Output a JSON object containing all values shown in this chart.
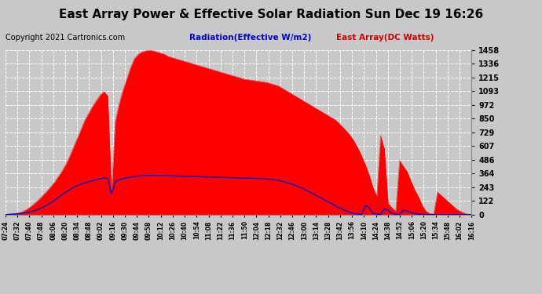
{
  "title": "East Array Power & Effective Solar Radiation Sun Dec 19 16:26",
  "copyright": "Copyright 2021 Cartronics.com",
  "legend_radiation": "Radiation(Effective W/m2)",
  "legend_array": "East Array(DC Watts)",
  "yticks": [
    0.0,
    121.5,
    242.9,
    364.4,
    485.9,
    607.3,
    728.8,
    850.3,
    971.7,
    1093.2,
    1214.7,
    1336.1,
    1457.6
  ],
  "ymax": 1457.6,
  "xtick_labels": [
    "07:24",
    "07:32",
    "07:40",
    "07:48",
    "08:06",
    "08:20",
    "08:34",
    "08:48",
    "09:02",
    "09:16",
    "09:30",
    "09:44",
    "09:58",
    "10:12",
    "10:26",
    "10:40",
    "10:54",
    "11:08",
    "11:22",
    "11:36",
    "11:50",
    "12:04",
    "12:18",
    "12:32",
    "12:46",
    "13:00",
    "13:14",
    "13:28",
    "13:42",
    "13:56",
    "14:10",
    "14:24",
    "14:38",
    "14:52",
    "15:06",
    "15:20",
    "15:34",
    "15:48",
    "16:02",
    "16:16"
  ],
  "background_color": "#c8c8c8",
  "plot_bg_color": "#c8c8c8",
  "grid_color": "#ffffff",
  "red_color": "#ff0000",
  "blue_color": "#0000cc",
  "title_color": "#000000",
  "title_fontsize": 11,
  "copyright_color": "#000000",
  "copyright_fontsize": 7,
  "legend_radiation_color": "#0000cc",
  "legend_array_color": "#cc0000",
  "array_power": [
    0,
    5,
    8,
    12,
    20,
    35,
    55,
    80,
    110,
    140,
    175,
    210,
    250,
    290,
    340,
    390,
    450,
    520,
    600,
    680,
    760,
    840,
    900,
    960,
    1010,
    1060,
    1090,
    1050,
    200,
    830,
    980,
    1100,
    1200,
    1300,
    1380,
    1420,
    1440,
    1450,
    1455,
    1450,
    1440,
    1430,
    1420,
    1400,
    1390,
    1380,
    1370,
    1360,
    1350,
    1340,
    1330,
    1320,
    1310,
    1300,
    1290,
    1280,
    1270,
    1260,
    1250,
    1240,
    1230,
    1220,
    1210,
    1200,
    1195,
    1190,
    1185,
    1180,
    1175,
    1170,
    1160,
    1150,
    1140,
    1120,
    1100,
    1080,
    1060,
    1040,
    1020,
    1000,
    980,
    960,
    940,
    920,
    900,
    880,
    860,
    840,
    810,
    775,
    740,
    700,
    650,
    590,
    520,
    440,
    350,
    240,
    160,
    700,
    580,
    100,
    60,
    30,
    480,
    430,
    380,
    300,
    220,
    160,
    80,
    30,
    10,
    5,
    200,
    170,
    140,
    110,
    80,
    50,
    30,
    15,
    5,
    0
  ],
  "radiation": [
    0,
    2,
    4,
    6,
    10,
    15,
    20,
    28,
    38,
    52,
    68,
    85,
    105,
    128,
    152,
    178,
    200,
    222,
    242,
    258,
    272,
    282,
    292,
    300,
    310,
    318,
    325,
    320,
    180,
    290,
    310,
    318,
    325,
    332,
    338,
    342,
    345,
    347,
    348,
    348,
    347,
    346,
    345,
    344,
    343,
    342,
    341,
    340,
    339,
    338,
    337,
    336,
    335,
    334,
    333,
    332,
    331,
    330,
    329,
    328,
    327,
    326,
    325,
    324,
    323,
    322,
    321,
    320,
    318,
    316,
    312,
    308,
    302,
    295,
    286,
    276,
    265,
    252,
    238,
    222,
    205,
    188,
    170,
    152,
    134,
    116,
    98,
    80,
    62,
    46,
    32,
    20,
    10,
    4,
    1,
    80,
    60,
    10,
    5,
    2,
    50,
    40,
    10,
    3,
    1,
    40,
    30,
    20,
    10,
    5,
    2,
    1,
    0,
    0,
    0,
    0,
    0,
    0,
    0,
    0,
    0,
    0,
    0,
    0
  ]
}
